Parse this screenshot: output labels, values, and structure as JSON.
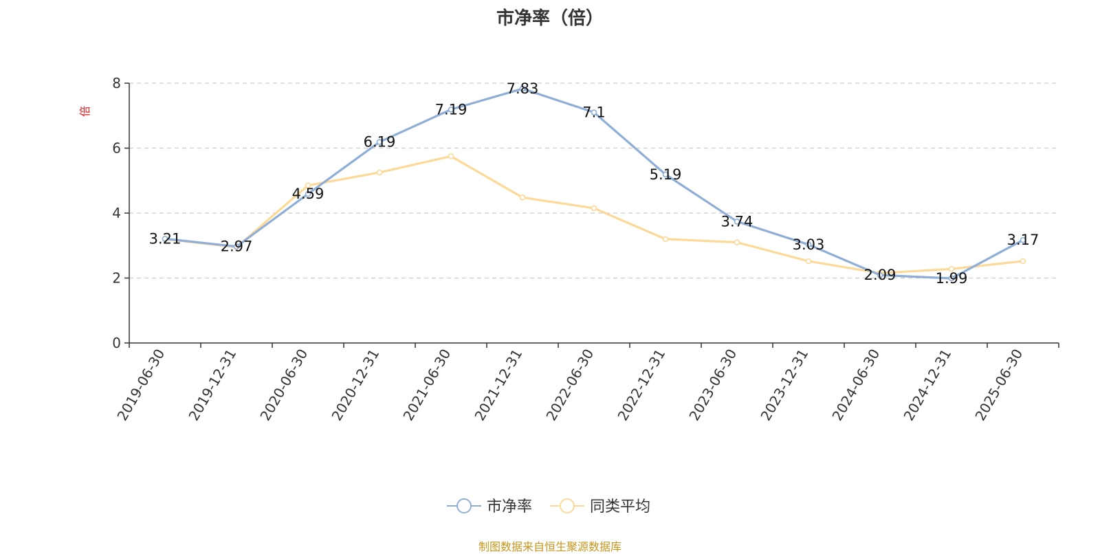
{
  "title": "市净率（倍）",
  "source": "制图数据来自恒生聚源数据库",
  "colors": {
    "pb": "#8eaed8",
    "avg": "#fcd997",
    "axis": "#333333",
    "grid": "#cccccc",
    "unit": "#e02020",
    "source": "#c8961e"
  },
  "chart_data": {
    "type": "line",
    "title": "市净率（倍）",
    "ylabel": "倍",
    "ylim": [
      0,
      8
    ],
    "yticks": [
      0,
      2,
      4,
      6,
      8
    ],
    "grid": true,
    "legend": "bottom-center",
    "categories": [
      "2019-06-30",
      "2019-12-31",
      "2020-06-30",
      "2020-12-31",
      "2021-06-30",
      "2021-12-31",
      "2022-06-30",
      "2022-12-31",
      "2023-06-30",
      "2023-12-31",
      "2024-06-30",
      "2024-12-31",
      "2025-06-30"
    ],
    "series": [
      {
        "name": "市净率",
        "color": "#8eaed8",
        "labels_shown": true,
        "values": [
          3.21,
          2.97,
          4.59,
          6.19,
          7.19,
          7.83,
          7.1,
          5.19,
          3.74,
          3.03,
          2.09,
          1.99,
          3.17
        ]
      },
      {
        "name": "同类平均",
        "color": "#fcd997",
        "labels_shown": false,
        "values": [
          3.2,
          2.95,
          4.85,
          5.25,
          5.75,
          4.48,
          4.15,
          3.2,
          3.1,
          2.52,
          2.15,
          2.28,
          2.52
        ]
      }
    ]
  }
}
